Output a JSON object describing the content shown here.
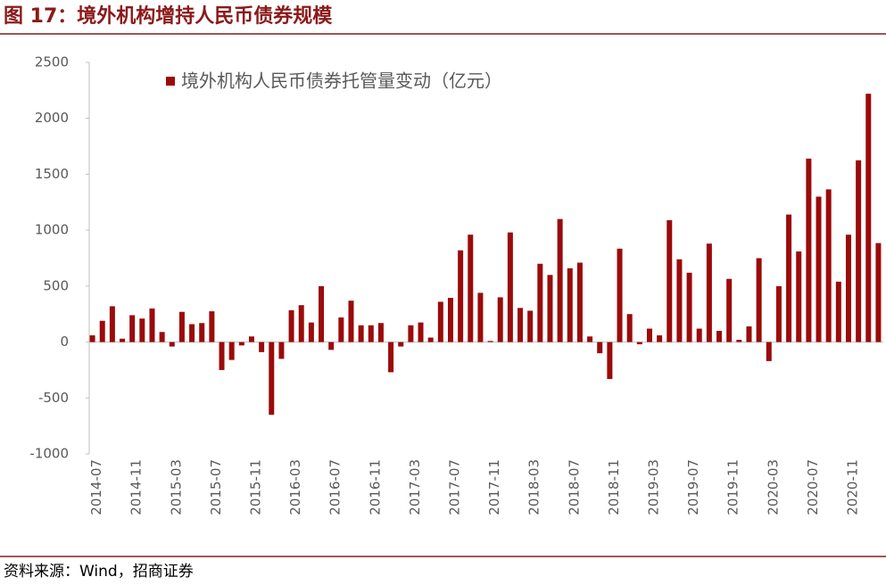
{
  "chart_data": {
    "type": "bar",
    "title": "图 17：境外机构增持人民币债券规模",
    "source": "资料来源：Wind，招商证券",
    "categories": [
      "2014-07",
      null,
      null,
      null,
      "2014-11",
      null,
      null,
      null,
      "2015-03",
      null,
      null,
      null,
      "2015-07",
      null,
      null,
      null,
      "2015-11",
      null,
      null,
      null,
      "2016-03",
      null,
      null,
      null,
      "2016-07",
      null,
      null,
      null,
      "2016-11",
      null,
      null,
      null,
      "2017-03",
      null,
      null,
      null,
      "2017-07",
      null,
      null,
      null,
      "2017-11",
      null,
      null,
      null,
      "2018-03",
      null,
      null,
      null,
      "2018-07",
      null,
      null,
      null,
      "2018-11",
      null,
      null,
      null,
      "2019-03",
      null,
      null,
      null,
      "2019-07",
      null,
      null,
      null,
      "2019-11",
      null,
      null,
      null,
      "2020-03",
      null,
      null,
      null,
      "2020-07",
      null,
      null,
      null,
      "2020-11",
      null,
      null,
      null
    ],
    "series": [
      {
        "name": "境外机构人民币债券托管量变动（亿元）",
        "color": "#9b0a0a",
        "values": [
          60,
          190,
          320,
          30,
          240,
          210,
          300,
          90,
          -40,
          270,
          160,
          170,
          275,
          -250,
          -160,
          -30,
          50,
          -90,
          -650,
          -150,
          285,
          330,
          175,
          500,
          -70,
          220,
          370,
          150,
          150,
          170,
          -270,
          -40,
          150,
          175,
          40,
          360,
          395,
          820,
          960,
          440,
          10,
          400,
          980,
          305,
          280,
          700,
          600,
          1100,
          660,
          710,
          50,
          -100,
          -330,
          835,
          250,
          -20,
          120,
          60,
          1090,
          740,
          620,
          120,
          880,
          100,
          565,
          20,
          140,
          750,
          -170,
          500,
          1140,
          810,
          1640,
          1300,
          1365,
          540,
          960,
          1625,
          2220,
          885
        ]
      }
    ],
    "ylim": [
      -1000,
      2500
    ],
    "yticks": [
      -1000,
      -500,
      0,
      500,
      1000,
      1500,
      2000,
      2500
    ],
    "legend": "top-left"
  }
}
